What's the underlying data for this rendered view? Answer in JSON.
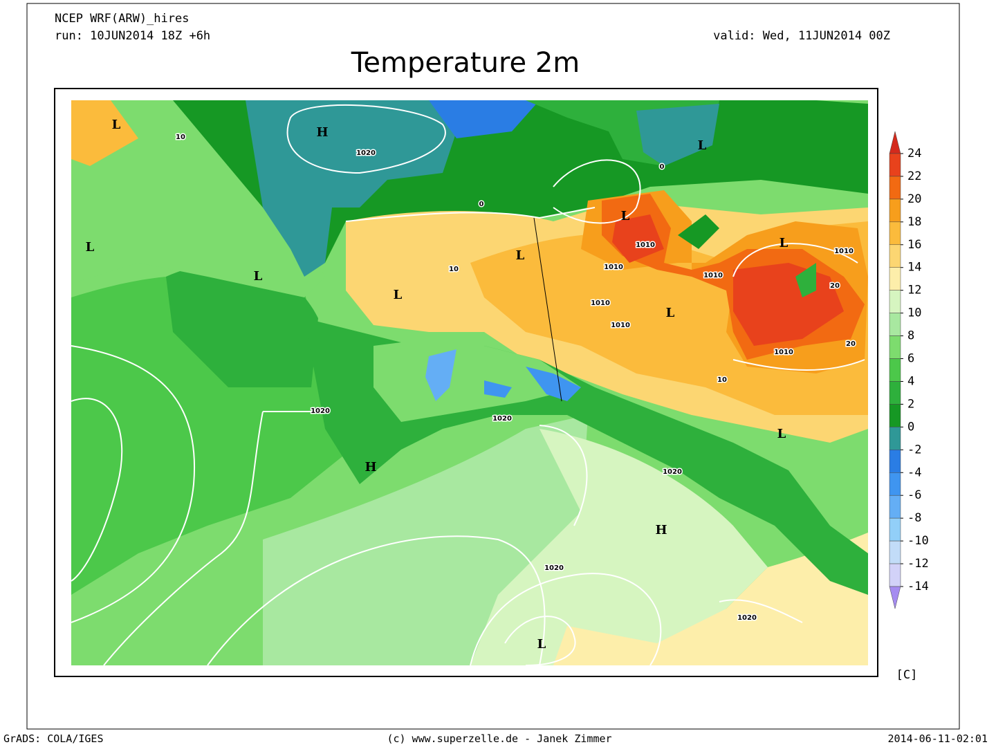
{
  "header": {
    "model": "NCEP WRF(ARW)_hires",
    "run": "run: 10JUN2014 18Z +6h",
    "valid": "valid: Wed, 11JUN2014 00Z",
    "title": "Temperature 2m"
  },
  "colorbar": {
    "unit": "[C]",
    "levels": [
      24,
      22,
      20,
      18,
      16,
      14,
      12,
      10,
      8,
      6,
      4,
      2,
      0,
      -2,
      -4,
      -6,
      -8,
      -10,
      -12,
      -14
    ],
    "colors": [
      "#d42a1c",
      "#e8421c",
      "#f26a12",
      "#f79e1c",
      "#fbbb3c",
      "#fcd672",
      "#fdeeaa",
      "#d6f5c0",
      "#a8e8a0",
      "#7ddc6e",
      "#4cc84a",
      "#2eb03c",
      "#169824",
      "#2f9897",
      "#2a7de4",
      "#3f95f0",
      "#64aef5",
      "#92cff8",
      "#c2dcf8",
      "#d2d2f8",
      "#a58cf0"
    ]
  },
  "map": {
    "systems": [
      "L",
      "H",
      "L",
      "L",
      "L",
      "L",
      "L",
      "L",
      "L",
      "L",
      "L",
      "H",
      "H",
      "L"
    ],
    "isobars": [
      "1020",
      "1010",
      "1010",
      "1010",
      "1010",
      "1010",
      "1010",
      "1010",
      "1020",
      "1020",
      "1020",
      "1020",
      "1020",
      "10",
      "10",
      "10",
      "0",
      "0",
      "20",
      "20"
    ]
  },
  "footer": {
    "left": "GrADS: COLA/IGES",
    "center": "(c) www.superzelle.de - Janek Zimmer",
    "right": "2014-06-11-02:01"
  }
}
